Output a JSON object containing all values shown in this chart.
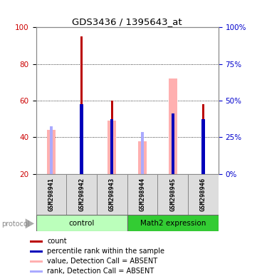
{
  "title": "GDS3436 / 1395643_at",
  "samples": [
    "GSM298941",
    "GSM298942",
    "GSM298943",
    "GSM298944",
    "GSM298945",
    "GSM298946"
  ],
  "red_bars": [
    0,
    95,
    60,
    0,
    0,
    58
  ],
  "blue_tops": [
    0,
    58,
    50,
    0,
    53,
    50
  ],
  "pink_bars": [
    44,
    0,
    49,
    38,
    72,
    0
  ],
  "lavender_tops": [
    46,
    0,
    0,
    43,
    0,
    0
  ],
  "ylim": [
    20,
    100
  ],
  "yticks_left": [
    20,
    40,
    60,
    80,
    100
  ],
  "yticks_right": [
    0,
    25,
    50,
    75,
    100
  ],
  "red_color": "#BB0000",
  "blue_color": "#0000BB",
  "pink_color": "#FFB0B0",
  "lavender_color": "#AAAAFF",
  "bg_color": "#DDDDDD",
  "control_bg": "#BBFFBB",
  "math2_bg": "#33CC33",
  "left_tick_color": "#CC0000",
  "right_tick_color": "#0000CC",
  "legend_items": [
    {
      "color": "#BB0000",
      "label": "count"
    },
    {
      "color": "#0000BB",
      "label": "percentile rank within the sample"
    },
    {
      "color": "#FFB0B0",
      "label": "value, Detection Call = ABSENT"
    },
    {
      "color": "#AAAAFF",
      "label": "rank, Detection Call = ABSENT"
    }
  ]
}
